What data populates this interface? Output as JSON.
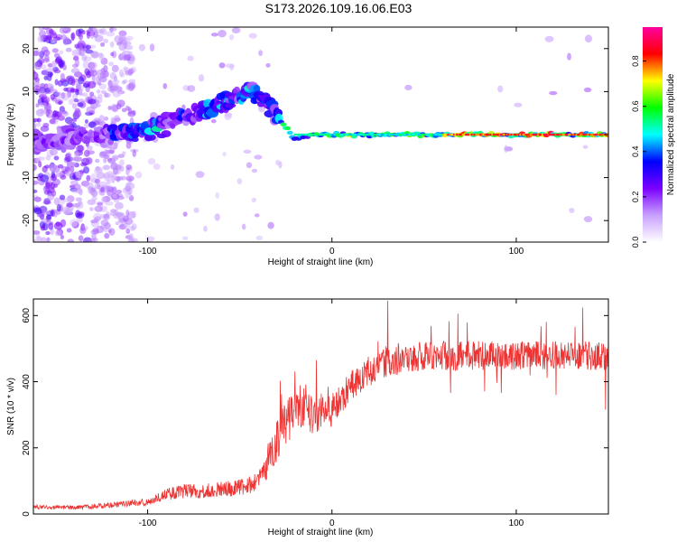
{
  "title": "S173.2026.109.16.06.E03",
  "chart_data": [
    {
      "type": "heatmap",
      "name": "spectrogram",
      "xlabel": "Height of straight line (km)",
      "ylabel": "Frequency (Hz)",
      "xlim": [
        -162,
        150
      ],
      "ylim": [
        -25,
        25
      ],
      "xticks": [
        -100,
        0,
        100
      ],
      "yticks": [
        -20,
        -10,
        0,
        10,
        20
      ],
      "colorbar": {
        "label": "Normalized spectral amplitude",
        "range": [
          0,
          0.95
        ],
        "ticks": [
          "0.0",
          "0.2",
          "0.4",
          "0.6",
          "0.8"
        ],
        "colors": [
          "#ffffff",
          "#c8a0ff",
          "#7a00ff",
          "#0000ff",
          "#00ffff",
          "#00ff00",
          "#ffff00",
          "#ff0000",
          "#ff00a0"
        ]
      },
      "ridge": {
        "description": "signal track",
        "points": [
          [
            -160,
            -2
          ],
          [
            -140,
            -1
          ],
          [
            -120,
            0
          ],
          [
            -100,
            1
          ],
          [
            -80,
            4
          ],
          [
            -60,
            7
          ],
          [
            -45,
            10
          ],
          [
            -35,
            8
          ],
          [
            -28,
            3
          ],
          [
            -20,
            -1
          ],
          [
            -10,
            0
          ],
          [
            0,
            0
          ],
          [
            50,
            0
          ],
          [
            100,
            0
          ],
          [
            150,
            0
          ]
        ]
      }
    },
    {
      "type": "line",
      "name": "snr",
      "xlabel": "Height of straight line (km)",
      "ylabel": "SNR (10 * v/v)",
      "xlim": [
        -162,
        150
      ],
      "ylim": [
        0,
        650
      ],
      "xticks": [
        -100,
        0,
        100
      ],
      "yticks": [
        0,
        200,
        400,
        600
      ],
      "color": "#ee3333",
      "envelope": [
        [
          -162,
          20
        ],
        [
          -140,
          18
        ],
        [
          -120,
          25
        ],
        [
          -100,
          35
        ],
        [
          -90,
          55
        ],
        [
          -80,
          65
        ],
        [
          -70,
          65
        ],
        [
          -60,
          70
        ],
        [
          -50,
          75
        ],
        [
          -40,
          90
        ],
        [
          -35,
          130
        ],
        [
          -30,
          200
        ],
        [
          -25,
          260
        ],
        [
          -20,
          300
        ],
        [
          -15,
          320
        ],
        [
          -10,
          290
        ],
        [
          -5,
          300
        ],
        [
          0,
          310
        ],
        [
          5,
          340
        ],
        [
          10,
          380
        ],
        [
          20,
          420
        ],
        [
          30,
          450
        ],
        [
          50,
          470
        ],
        [
          80,
          470
        ],
        [
          100,
          470
        ],
        [
          120,
          470
        ],
        [
          150,
          470
        ]
      ]
    }
  ]
}
